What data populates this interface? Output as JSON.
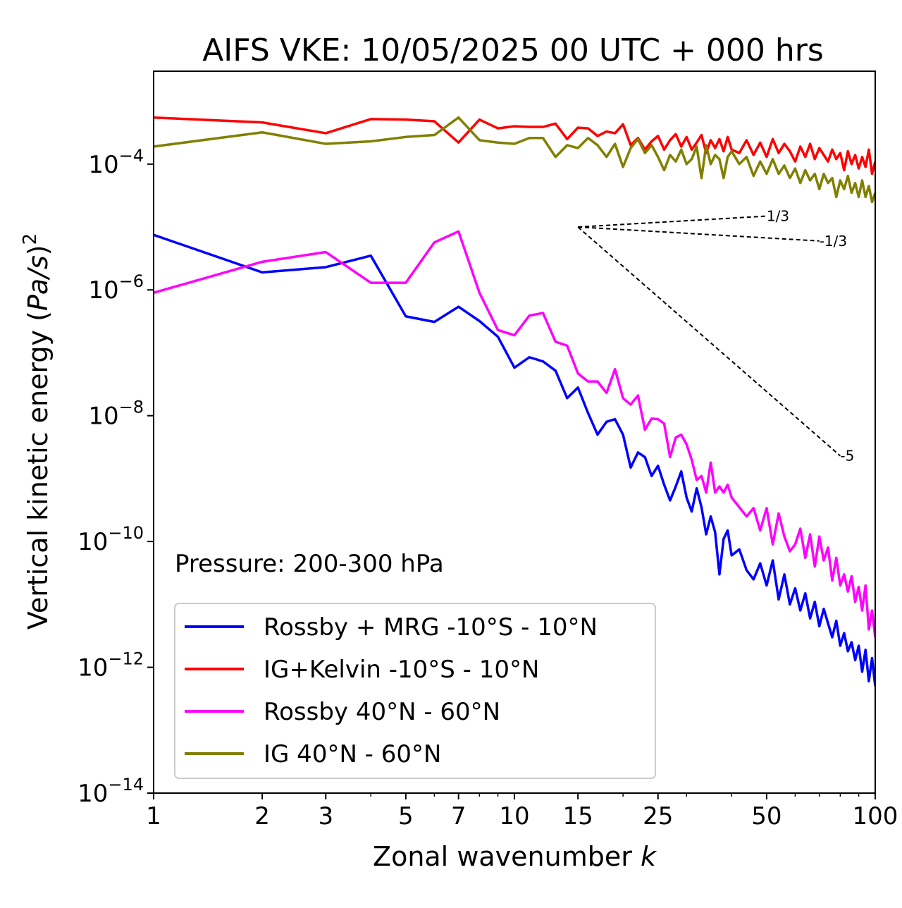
{
  "chart_data": {
    "type": "line",
    "title": "AIFS VKE: 10/05/2025 00 UTC + 000 hrs",
    "xlabel": "Zonal wavenumber k",
    "ylabel": "Vertical kinetic energy (Pa/s)²",
    "xscale": "log",
    "yscale": "log",
    "xlim": [
      1,
      100
    ],
    "ylim": [
      1e-14,
      0.003
    ],
    "x_ticks": [
      1,
      2,
      3,
      5,
      7,
      10,
      15,
      25,
      50,
      100
    ],
    "x_tick_labels": [
      "1",
      "2",
      "3",
      "5",
      "7",
      "10",
      "15",
      "25",
      "50",
      "100"
    ],
    "y_ticks": [
      {
        "mantissa": "10",
        "exponent": "−4",
        "value": 0.0001
      },
      {
        "mantissa": "10",
        "exponent": "−6",
        "value": 1e-06
      },
      {
        "mantissa": "10",
        "exponent": "−8",
        "value": 1e-08
      },
      {
        "mantissa": "10",
        "exponent": "−10",
        "value": 1e-10
      },
      {
        "mantissa": "10",
        "exponent": "−12",
        "value": 1e-12
      },
      {
        "mantissa": "10",
        "exponent": "−14",
        "value": 1e-14
      }
    ],
    "annotation": "Pressure: 200-300 hPa",
    "legend_position": "lower-left",
    "grid": false,
    "series": [
      {
        "name": "Rossby + MRG -10°S - 10°N",
        "color": "#0000ff",
        "x": [
          1,
          2,
          3,
          4,
          5,
          6,
          7,
          8,
          9,
          10,
          11,
          12,
          13,
          14,
          15,
          16,
          17,
          18,
          19,
          20,
          21,
          22,
          23,
          24,
          25,
          26,
          27,
          28,
          29,
          30,
          31,
          32,
          33,
          34,
          35,
          36,
          37,
          38,
          39,
          40,
          42,
          44,
          46,
          48,
          50,
          52,
          54,
          56,
          58,
          60,
          62,
          64,
          66,
          68,
          70,
          72,
          74,
          76,
          78,
          80,
          82,
          84,
          86,
          88,
          90,
          92,
          94,
          96,
          98,
          100
        ],
        "y": [
          7.5e-06,
          1.9e-06,
          2.3e-06,
          3.5e-06,
          3.8e-07,
          3.1e-07,
          5.4e-07,
          3.2e-07,
          1.8e-07,
          5.8e-08,
          8.5e-08,
          7.3e-08,
          5.2e-08,
          1.9e-08,
          2.8e-08,
          1.1e-08,
          5e-09,
          8e-09,
          8.8e-09,
          5e-09,
          1.5e-09,
          2.6e-09,
          2.2e-09,
          1.1e-09,
          1.6e-09,
          8e-10,
          4.5e-10,
          7.5e-10,
          1.3e-09,
          5e-10,
          3e-10,
          7e-10,
          3.5e-10,
          1.3e-10,
          2.5e-10,
          1.4e-10,
          3e-11,
          1.1e-10,
          1.5e-10,
          6e-11,
          7.5e-11,
          3.5e-11,
          2.5e-11,
          4.5e-11,
          2e-11,
          5e-11,
          1.2e-11,
          3e-11,
          1e-11,
          1.8e-11,
          8e-12,
          1.5e-11,
          6e-12,
          1.1e-11,
          4.5e-12,
          8.5e-12,
          5e-12,
          3e-12,
          5.5e-12,
          2.2e-12,
          3.5e-12,
          1.8e-12,
          2.5e-12,
          1.3e-12,
          2.2e-12,
          8.5e-13,
          1.9e-12,
          6e-13,
          1.4e-12,
          5e-13
        ]
      },
      {
        "name": "IG+Kelvin -10°S - 10°N",
        "color": "#ff0000",
        "x": [
          1,
          2,
          3,
          4,
          5,
          6,
          7,
          8,
          9,
          10,
          11,
          12,
          13,
          14,
          15,
          16,
          17,
          18,
          19,
          20,
          21,
          22,
          23,
          24,
          25,
          26,
          27,
          28,
          29,
          30,
          31,
          32,
          33,
          34,
          35,
          36,
          37,
          38,
          39,
          40,
          42,
          44,
          46,
          48,
          50,
          52,
          54,
          56,
          58,
          60,
          62,
          64,
          66,
          68,
          70,
          72,
          74,
          76,
          78,
          80,
          82,
          84,
          86,
          88,
          90,
          92,
          94,
          96,
          98,
          100
        ],
        "y": [
          0.00055,
          0.00046,
          0.00031,
          0.00052,
          0.00051,
          0.00048,
          0.00022,
          0.00051,
          0.00037,
          0.0004,
          0.00039,
          0.00039,
          0.00044,
          0.00025,
          0.00038,
          0.00037,
          0.00028,
          0.00033,
          0.00031,
          0.00043,
          0.0002,
          0.00026,
          0.00017,
          0.00023,
          0.00028,
          0.00017,
          0.00024,
          0.0003,
          0.00019,
          0.00027,
          0.00017,
          0.00022,
          0.00029,
          0.00015,
          0.00024,
          0.00018,
          0.00025,
          0.00016,
          0.00027,
          0.00017,
          0.00015,
          0.00024,
          0.00014,
          0.00022,
          0.00013,
          0.00025,
          0.00015,
          0.00021,
          0.00016,
          0.00011,
          0.00019,
          0.00013,
          0.00021,
          0.00012,
          0.00018,
          0.00014,
          0.00011,
          0.00017,
          0.00012,
          0.00015,
          8e-05,
          0.00016,
          0.0001,
          0.00014,
          8.5e-05,
          0.00013,
          9e-05,
          0.00017,
          7e-05,
          0.00011
        ]
      },
      {
        "name": "Rossby 40°N - 60°N",
        "color": "#ff00ff",
        "x": [
          1,
          2,
          3,
          4,
          5,
          6,
          7,
          8,
          9,
          10,
          11,
          12,
          13,
          14,
          15,
          16,
          17,
          18,
          19,
          20,
          21,
          22,
          23,
          24,
          25,
          26,
          27,
          28,
          29,
          30,
          31,
          32,
          33,
          34,
          35,
          36,
          37,
          38,
          39,
          40,
          42,
          44,
          46,
          48,
          50,
          52,
          54,
          56,
          58,
          60,
          62,
          64,
          66,
          68,
          70,
          72,
          74,
          76,
          78,
          80,
          82,
          84,
          86,
          88,
          90,
          92,
          94,
          96,
          98,
          100
        ],
        "y": [
          9e-07,
          2.8e-06,
          4e-06,
          1.3e-06,
          1.3e-06,
          5.7e-06,
          8.5e-06,
          9e-07,
          2.3e-07,
          1.9e-07,
          3.9e-07,
          4.3e-07,
          1.5e-07,
          1.3e-07,
          4.7e-08,
          3.5e-08,
          3.5e-08,
          2.3e-08,
          5.5e-08,
          1.9e-08,
          1.5e-08,
          2.1e-08,
          6e-09,
          9e-09,
          8.8e-09,
          7.5e-09,
          2.2e-09,
          4.5e-09,
          5e-09,
          3.5e-09,
          2e-09,
          9.5e-10,
          1.1e-09,
          6e-10,
          1.8e-09,
          6e-10,
          7.5e-10,
          6e-10,
          8e-10,
          5e-10,
          3.5e-10,
          2.5e-10,
          3.4e-10,
          1.5e-10,
          3.4e-10,
          9e-11,
          2.8e-10,
          1.2e-10,
          7e-11,
          9e-11,
          1.6e-10,
          5.5e-11,
          1.3e-10,
          4e-11,
          1.2e-10,
          5e-11,
          8e-11,
          2.4e-11,
          5.5e-11,
          2e-11,
          3e-11,
          1.6e-11,
          2.8e-11,
          1.1e-11,
          1.9e-11,
          8e-12,
          2e-11,
          4e-12,
          8e-12,
          3e-12
        ]
      },
      {
        "name": "IG 40°N - 60°N",
        "color": "#808000",
        "x": [
          1,
          2,
          3,
          4,
          5,
          6,
          7,
          8,
          9,
          10,
          11,
          12,
          13,
          14,
          15,
          16,
          17,
          18,
          19,
          20,
          21,
          22,
          23,
          24,
          25,
          26,
          27,
          28,
          29,
          30,
          31,
          32,
          33,
          34,
          35,
          36,
          37,
          38,
          39,
          40,
          42,
          44,
          46,
          48,
          50,
          52,
          54,
          56,
          58,
          60,
          62,
          64,
          66,
          68,
          70,
          72,
          74,
          76,
          78,
          80,
          82,
          84,
          86,
          88,
          90,
          92,
          94,
          96,
          98,
          100
        ],
        "y": [
          0.00019,
          0.00032,
          0.00021,
          0.00023,
          0.00027,
          0.00029,
          0.00055,
          0.00024,
          0.00022,
          0.00021,
          0.00026,
          0.00026,
          0.00013,
          0.0002,
          0.00018,
          0.00026,
          0.0002,
          0.00013,
          0.00021,
          9e-05,
          0.00018,
          0.00025,
          0.00015,
          0.0002,
          0.00013,
          8e-05,
          0.00014,
          0.00011,
          0.00017,
          0.0001,
          0.00012,
          0.00019,
          6e-05,
          0.0002,
          0.0001,
          0.00014,
          0.00012,
          6e-05,
          0.00013,
          0.00016,
          0.0001,
          0.00013,
          6.5e-05,
          0.00011,
          7e-05,
          0.00012,
          7e-05,
          9.5e-05,
          6e-05,
          8.5e-05,
          5e-05,
          8e-05,
          5.5e-05,
          7e-05,
          4e-05,
          7e-05,
          5e-05,
          6e-05,
          3e-05,
          5.5e-05,
          4e-05,
          6.5e-05,
          3.5e-05,
          5e-05,
          3e-05,
          5.5e-05,
          3e-05,
          4.5e-05,
          2.5e-05,
          3.5e-05
        ]
      }
    ],
    "reference_lines": [
      {
        "label": "1/3",
        "x": [
          15,
          50
        ],
        "y": [
          1e-05,
          1.49e-05
        ]
      },
      {
        "label": "-1/3",
        "x": [
          15,
          70
        ],
        "y": [
          1e-05,
          6e-06
        ]
      },
      {
        "label": "-5",
        "x": [
          15,
          80
        ],
        "y": [
          1e-05,
          2.3e-09
        ]
      }
    ]
  }
}
